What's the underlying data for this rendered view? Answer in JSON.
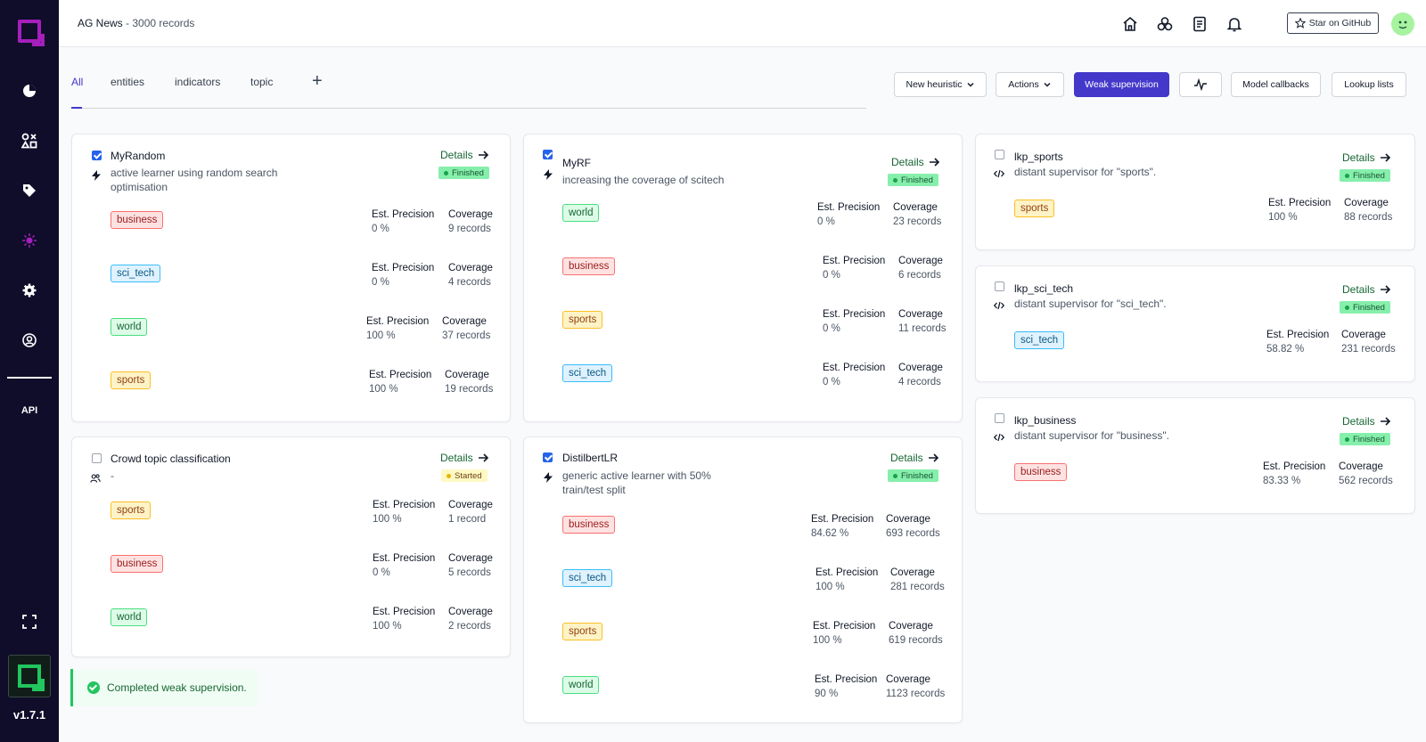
{
  "app": {
    "version": "v1.7.1",
    "api_label": "API",
    "project_title": "AG News",
    "project_records": "3000 records",
    "github_label": "Star on GitHub"
  },
  "tabs": [
    {
      "label": "All"
    },
    {
      "label": "entities"
    },
    {
      "label": "indicators"
    },
    {
      "label": "topic"
    }
  ],
  "toolbar": {
    "new_heuristic": "New heuristic",
    "actions": "Actions",
    "weak_supervision": "Weak supervision",
    "model_callbacks": "Model callbacks",
    "lookup_lists": "Lookup lists"
  },
  "common": {
    "details": "Details",
    "est_precision": "Est. Precision",
    "coverage": "Coverage"
  },
  "cards": [
    {
      "title": "MyRandom",
      "description": "active learner using random search optimisation",
      "status": "Finished",
      "icon": "lightning-icon",
      "rows": [
        {
          "label": "business",
          "precision": "0 %",
          "coverage": "9 records"
        },
        {
          "label": "sci_tech",
          "precision": "0 %",
          "coverage": "4 records"
        },
        {
          "label": "world",
          "precision": "100 %",
          "coverage": "37 records"
        },
        {
          "label": "sports",
          "precision": "100 %",
          "coverage": "19 records"
        }
      ]
    },
    {
      "title": "MyRF",
      "description": "increasing the coverage of scitech",
      "status": "Finished",
      "icon": "lightning-icon",
      "rows": [
        {
          "label": "world",
          "precision": "0 %",
          "coverage": "23 records"
        },
        {
          "label": "business",
          "precision": "0 %",
          "coverage": "6 records"
        },
        {
          "label": "sports",
          "precision": "0 %",
          "coverage": "11 records"
        },
        {
          "label": "sci_tech",
          "precision": "0 %",
          "coverage": "4 records"
        }
      ]
    },
    {
      "title": "lkp_sports",
      "description": "distant supervisor for \"sports\".",
      "status": "Finished",
      "icon": "code-icon",
      "rows": [
        {
          "label": "sports",
          "precision": "100 %",
          "coverage": "88 records"
        }
      ]
    },
    {
      "title": "lkp_sci_tech",
      "description": "distant supervisor for \"sci_tech\".",
      "status": "Finished",
      "icon": "code-icon",
      "rows": [
        {
          "label": "sci_tech",
          "precision": "58.82 %",
          "coverage": "231 records"
        }
      ]
    },
    {
      "title": "lkp_business",
      "description": "distant supervisor for \"business\".",
      "status": "Finished",
      "icon": "code-icon",
      "rows": [
        {
          "label": "business",
          "precision": "83.33 %",
          "coverage": "562 records"
        }
      ]
    },
    {
      "title": "Crowd topic classification",
      "description": "-",
      "status": "Started",
      "icon": "users-icon",
      "rows": [
        {
          "label": "sports",
          "precision": "100 %",
          "coverage": "1 record"
        },
        {
          "label": "business",
          "precision": "0 %",
          "coverage": "5 records"
        },
        {
          "label": "world",
          "precision": "100 %",
          "coverage": "2 records"
        }
      ]
    },
    {
      "title": "DistilbertLR",
      "description": "generic active learner with 50% train/test split",
      "status": "Finished",
      "icon": "lightning-icon",
      "rows": [
        {
          "label": "business",
          "precision": "84.62 %",
          "coverage": "693 records"
        },
        {
          "label": "sci_tech",
          "precision": "100 %",
          "coverage": "281 records"
        },
        {
          "label": "sports",
          "precision": "100 %",
          "coverage": "619 records"
        },
        {
          "label": "world",
          "precision": "90 %",
          "coverage": "1123 records"
        }
      ]
    }
  ],
  "toast": {
    "message": "Completed weak supervision."
  }
}
